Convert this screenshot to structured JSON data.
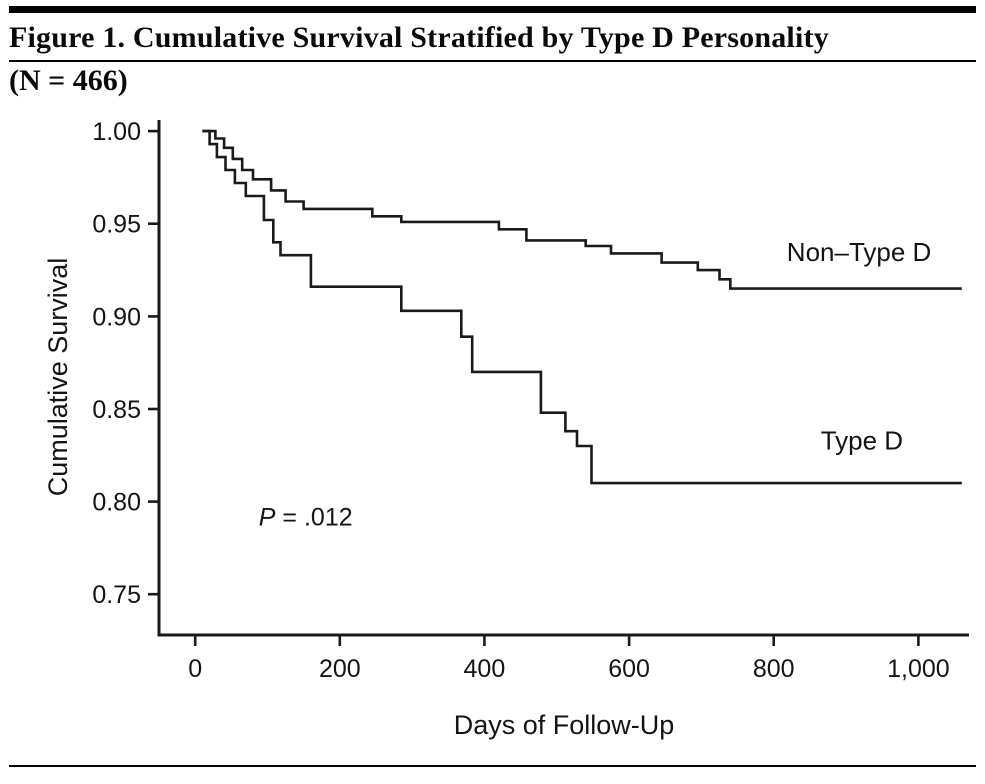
{
  "header": {
    "title_line1": "Figure 1. Cumulative Survival Stratified by Type D Personality",
    "title_line2": "(N = 466)"
  },
  "chart_data": {
    "type": "line",
    "subtype": "kaplan-meier-step",
    "title": "Cumulative Survival Stratified by Type D Personality (N = 466)",
    "xlabel": "Days of Follow-Up",
    "ylabel": "Cumulative Survival",
    "xlim": [
      -50,
      1070
    ],
    "ylim": [
      0.728,
      1.006
    ],
    "grid": false,
    "legend_position": "inline-labels",
    "color": "#1a1a1a",
    "xticks": [
      0,
      200,
      400,
      600,
      800,
      1000
    ],
    "xtick_labels": [
      "0",
      "200",
      "400",
      "600",
      "800",
      "1,000"
    ],
    "yticks": [
      0.75,
      0.8,
      0.85,
      0.9,
      0.95,
      1.0
    ],
    "ytick_labels": [
      "0.75",
      "0.80",
      "0.85",
      "0.90",
      "0.95",
      "1.00"
    ],
    "annotation": {
      "italic": "P",
      "text": " = .012",
      "x": 88,
      "y": 0.787
    },
    "series": [
      {
        "name": "Non–Type D",
        "label_pos": {
          "x": 818,
          "y": 0.93
        },
        "points": [
          [
            10,
            1.0
          ],
          [
            28,
            0.996
          ],
          [
            40,
            0.991
          ],
          [
            52,
            0.985
          ],
          [
            65,
            0.979
          ],
          [
            80,
            0.974
          ],
          [
            105,
            0.968
          ],
          [
            125,
            0.962
          ],
          [
            150,
            0.958
          ],
          [
            245,
            0.954
          ],
          [
            285,
            0.951
          ],
          [
            420,
            0.947
          ],
          [
            458,
            0.941
          ],
          [
            540,
            0.938
          ],
          [
            575,
            0.934
          ],
          [
            645,
            0.929
          ],
          [
            695,
            0.925
          ],
          [
            725,
            0.92
          ],
          [
            740,
            0.915
          ],
          [
            1060,
            0.915
          ]
        ]
      },
      {
        "name": "Type D",
        "label_pos": {
          "x": 865,
          "y": 0.828
        },
        "points": [
          [
            10,
            1.0
          ],
          [
            20,
            0.993
          ],
          [
            30,
            0.986
          ],
          [
            42,
            0.979
          ],
          [
            55,
            0.972
          ],
          [
            70,
            0.965
          ],
          [
            95,
            0.952
          ],
          [
            108,
            0.94
          ],
          [
            118,
            0.933
          ],
          [
            160,
            0.916
          ],
          [
            285,
            0.903
          ],
          [
            368,
            0.889
          ],
          [
            383,
            0.87
          ],
          [
            478,
            0.848
          ],
          [
            512,
            0.838
          ],
          [
            528,
            0.83
          ],
          [
            548,
            0.81
          ],
          [
            1060,
            0.81
          ]
        ]
      }
    ]
  }
}
